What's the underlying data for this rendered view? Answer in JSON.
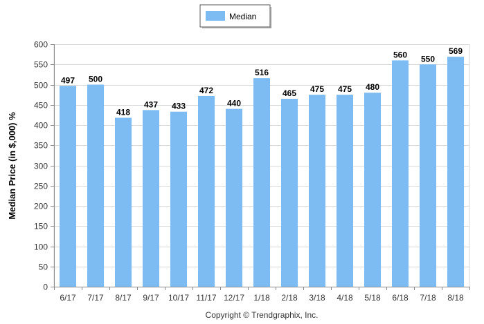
{
  "chart_data": {
    "type": "bar",
    "categories": [
      "6/17",
      "7/17",
      "8/17",
      "9/17",
      "10/17",
      "11/17",
      "12/17",
      "1/18",
      "2/18",
      "3/18",
      "4/18",
      "5/18",
      "6/18",
      "7/18",
      "8/18"
    ],
    "series": [
      {
        "name": "Median",
        "color": "#7cbcf2",
        "values": [
          497,
          500,
          418,
          437,
          433,
          472,
          440,
          516,
          465,
          475,
          475,
          480,
          560,
          550,
          569
        ]
      }
    ],
    "ylabel": "Median Price (in $,000) %",
    "xlabel": "",
    "ylim": [
      0,
      600
    ],
    "yticks": [
      0,
      50,
      100,
      150,
      200,
      250,
      300,
      350,
      400,
      450,
      500,
      550,
      600
    ],
    "grid": true,
    "legend_position": "top-center",
    "data_labels": true
  },
  "footer": {
    "copyright": "Copyright © Trendgraphix, Inc."
  }
}
